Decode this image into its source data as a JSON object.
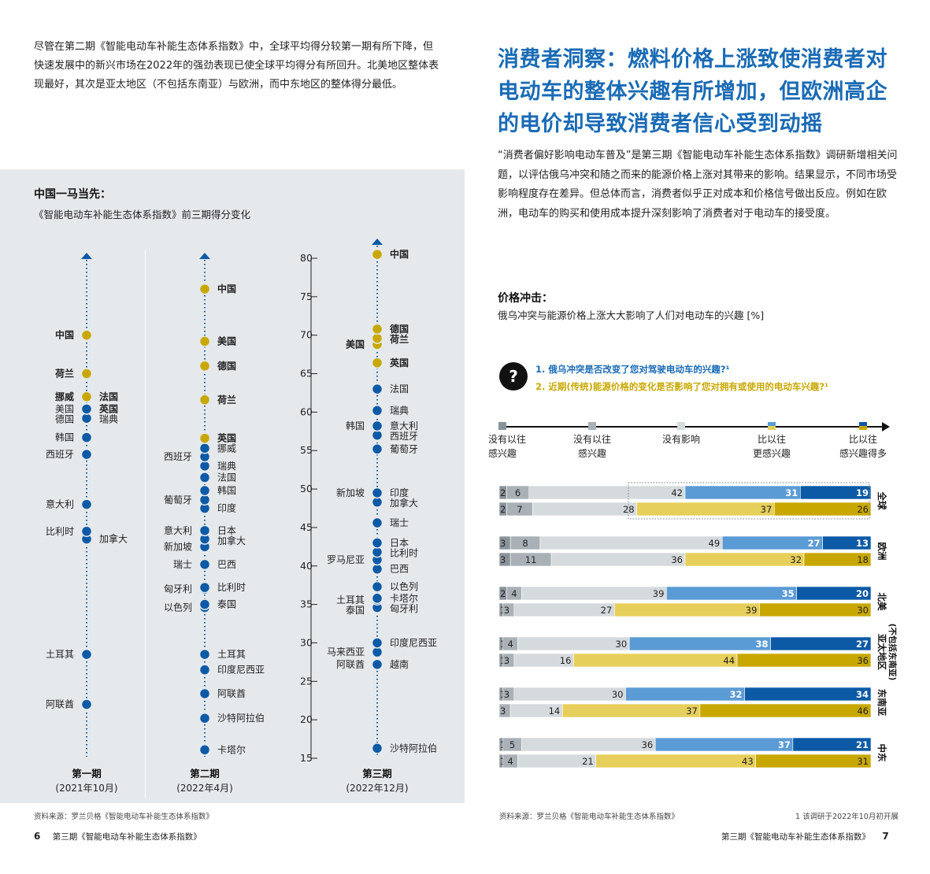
{
  "intro": "尽管在第二期《智能电动车补能生态体系指数》中，全球平均得分较第一期有所下降，但快速发展中的新兴市场在2022年的强劲表现已使全球平均得分有所回升。北美地区整体表现最好，其次是亚太地区（不包括东南亚）与欧洲，而中东地区的整体得分最低。",
  "left_chart": {
    "title": "中国一马当先：",
    "subtitle": "《智能电动车补能生态体系指数》前三期得分变化",
    "source": "资料来源：罗兰贝格《智能电动车补能生态体系指数》"
  },
  "right": {
    "headline": "消费者洞察：燃料价格上涨致使消费者对电动车的整体兴趣有所增加，但欧洲高企的电价却导致消费者信心受到动摇",
    "paragraph": "“消费者偏好影响电动车普及”是第三期《智能电动车补能生态体系指数》调研新增相关问题，以评估俄乌冲突和随之而来的能源价格上涨对其带来的影响。结果显示，不同市场受影响程度存在差异。但总体而言，消费者似乎正对成本和价格信号做出反应。例如在欧洲，电动车的购买和使用成本提升深刻影响了消费者对于电动车的接受度。",
    "chart_title": "价格冲击：",
    "chart_subtitle": "俄乌冲突与能源价格上涨大大影响了人们对电动车的兴趣 [%]",
    "question_mark": "?",
    "q1": "1. 俄乌冲突是否改变了您对驾驶电动车的兴趣?¹",
    "q2": "2. 近期(传统)能源价格的变化是否影响了您对拥有或使用的电动车兴趣?¹",
    "source": "资料来源：罗兰贝格《智能电动车补能生态体系指数》",
    "footnote": "1 该调研于2022年10月初开展"
  },
  "footer": {
    "left_page": "6",
    "left_text": "第三期《智能电动车补能生态体系指数》",
    "right_text": "第三期《智能电动车补能生态体系指数》",
    "right_page": "7"
  },
  "colors": {
    "blue": "#1a6bb5",
    "dark_blue": "#0c5aa6",
    "gold": "#c8a800",
    "light_gold": "#e6cf5a",
    "mid_blue": "#5b9bd5",
    "gray_dark": "#8a9399",
    "gray_mid": "#a9b1b6",
    "gray_light": "#d5dadd"
  },
  "chart_data": [
    {
      "type": "scatter",
      "title": "中国一马当先：",
      "subtitle": "《智能电动车补能生态体系指数》前三期得分变化",
      "ylim": [
        15,
        80
      ],
      "yticks": [
        80,
        75,
        70,
        65,
        60,
        55,
        50,
        45,
        40,
        35,
        30,
        25,
        20,
        15
      ],
      "periods": [
        {
          "name": "第一期",
          "date": "(2021年10月)",
          "points": [
            {
              "label": "中国",
              "value": 70,
              "highlight": true
            },
            {
              "label": "荷兰",
              "value": 65,
              "highlight": true
            },
            {
              "label": "挪威",
              "value": 62,
              "highlight": true
            },
            {
              "label": "法国",
              "value": 62,
              "highlight": true
            },
            {
              "label": "美国",
              "value": 60.4,
              "highlight": false
            },
            {
              "label": "英国",
              "value": 60.4,
              "highlight": true
            },
            {
              "label": "德国",
              "value": 59.2,
              "highlight": false
            },
            {
              "label": "瑞典",
              "value": 59.2,
              "highlight": false
            },
            {
              "label": "韩国",
              "value": 56.7,
              "highlight": false
            },
            {
              "label": "西班牙",
              "value": 54.5,
              "highlight": false
            },
            {
              "label": "意大利",
              "value": 48,
              "highlight": false
            },
            {
              "label": "加拿大",
              "value": 43.5,
              "highlight": false
            },
            {
              "label": "比利时",
              "value": 44.5,
              "highlight": false
            },
            {
              "label": "土耳其",
              "value": 28.5,
              "highlight": false
            },
            {
              "label": "阿联酋",
              "value": 22,
              "highlight": false
            }
          ]
        },
        {
          "name": "第二期",
          "date": "(2022年4月)",
          "points": [
            {
              "label": "中国",
              "value": 76,
              "highlight": true
            },
            {
              "label": "美国",
              "value": 69.2,
              "highlight": true
            },
            {
              "label": "德国",
              "value": 66,
              "highlight": true
            },
            {
              "label": "荷兰",
              "value": 61.6,
              "highlight": true
            },
            {
              "label": "英国",
              "value": 56.6,
              "highlight": true
            },
            {
              "label": "挪威",
              "value": 55.3,
              "highlight": false
            },
            {
              "label": "西班牙",
              "value": 54.2,
              "highlight": false
            },
            {
              "label": "瑞典",
              "value": 53,
              "highlight": false
            },
            {
              "label": "法国",
              "value": 51.5,
              "highlight": false
            },
            {
              "label": "韩国",
              "value": 49.8,
              "highlight": false
            },
            {
              "label": "葡萄牙",
              "value": 48.6,
              "highlight": false
            },
            {
              "label": "印度",
              "value": 47.5,
              "highlight": false
            },
            {
              "label": "日本",
              "value": 44.6,
              "highlight": false
            },
            {
              "label": "加拿大",
              "value": 43.5,
              "highlight": false
            },
            {
              "label": "意大利",
              "value": 44.6,
              "highlight": false
            },
            {
              "label": "新加坡",
              "value": 42.5,
              "highlight": false
            },
            {
              "label": "巴西",
              "value": 40.2,
              "highlight": false
            },
            {
              "label": "瑞士",
              "value": 40.2,
              "highlight": false
            },
            {
              "label": "比利时",
              "value": 37.2,
              "highlight": false
            },
            {
              "label": "匈牙利",
              "value": 37,
              "highlight": false
            },
            {
              "label": "泰国",
              "value": 35,
              "highlight": false
            },
            {
              "label": "以色列",
              "value": 34.6,
              "highlight": false
            },
            {
              "label": "土耳其",
              "value": 28.5,
              "highlight": false
            },
            {
              "label": "印度尼西亚",
              "value": 26.5,
              "highlight": false
            },
            {
              "label": "阿联酋",
              "value": 23.4,
              "highlight": false
            },
            {
              "label": "沙特阿拉伯",
              "value": 20.2,
              "highlight": false
            },
            {
              "label": "卡塔尔",
              "value": 16.1,
              "highlight": false
            }
          ]
        },
        {
          "name": "第三期",
          "date": "(2022年12月)",
          "points": [
            {
              "label": "中国",
              "value": 80.5,
              "highlight": true
            },
            {
              "label": "德国",
              "value": 70.8,
              "highlight": true
            },
            {
              "label": "荷兰",
              "value": 69.6,
              "highlight": true
            },
            {
              "label": "美国",
              "value": 68.8,
              "highlight": true
            },
            {
              "label": "英国",
              "value": 66.4,
              "highlight": true
            },
            {
              "label": "法国",
              "value": 63,
              "highlight": false
            },
            {
              "label": "瑞典",
              "value": 60.2,
              "highlight": false
            },
            {
              "label": "意大利",
              "value": 58.2,
              "highlight": false
            },
            {
              "label": "韩国",
              "value": 58.2,
              "highlight": false
            },
            {
              "label": "西班牙",
              "value": 57,
              "highlight": false
            },
            {
              "label": "葡萄牙",
              "value": 55.2,
              "highlight": false
            },
            {
              "label": "印度",
              "value": 49.5,
              "highlight": false
            },
            {
              "label": "新加坡",
              "value": 49.5,
              "highlight": false
            },
            {
              "label": "加拿大",
              "value": 48.3,
              "highlight": false
            },
            {
              "label": "瑞士",
              "value": 45.6,
              "highlight": false
            },
            {
              "label": "日本",
              "value": 43,
              "highlight": false
            },
            {
              "label": "比利时",
              "value": 41.8,
              "highlight": false
            },
            {
              "label": "罗马尼亚",
              "value": 40.8,
              "highlight": false
            },
            {
              "label": "巴西",
              "value": 39.6,
              "highlight": false
            },
            {
              "label": "以色列",
              "value": 37.3,
              "highlight": false
            },
            {
              "label": "卡塔尔",
              "value": 35.8,
              "highlight": false
            },
            {
              "label": "土耳其",
              "value": 35.6,
              "highlight": false
            },
            {
              "label": "匈牙利",
              "value": 34.6,
              "highlight": false
            },
            {
              "label": "泰国",
              "value": 34.6,
              "highlight": false
            },
            {
              "label": "印度尼西亚",
              "value": 30,
              "highlight": false
            },
            {
              "label": "马来西亚",
              "value": 28.8,
              "highlight": false
            },
            {
              "label": "越南",
              "value": 27.2,
              "highlight": false
            },
            {
              "label": "阿联酋",
              "value": 27.2,
              "highlight": false
            },
            {
              "label": "沙特阿拉伯",
              "value": 16.3,
              "highlight": false
            }
          ]
        }
      ]
    },
    {
      "type": "bar",
      "stacked": true,
      "orientation": "horizontal",
      "title": "价格冲击：",
      "subtitle": "俄乌冲突与能源价格上涨大大影响了人们对电动车的兴趣 [%]",
      "scale_labels": [
        "远没有以往感兴趣",
        "没有以往感兴趣",
        "没有影响",
        "比以往更感兴趣",
        "比以往感兴趣得多"
      ],
      "series": [
        {
          "name": "1. 俄乌冲突是否改变了您对驾驶电动车的兴趣?¹"
        },
        {
          "name": "2. 近期(传统)能源价格的变化是否影响了您对拥有或使用的电动车兴趣?¹"
        }
      ],
      "regions": [
        {
          "name": "全球",
          "q1": [
            2,
            6,
            42,
            31,
            19
          ],
          "q2": [
            2,
            7,
            28,
            37,
            26
          ]
        },
        {
          "name": "欧洲",
          "q1": [
            3,
            8,
            49,
            27,
            13
          ],
          "q2": [
            3,
            11,
            36,
            32,
            18
          ]
        },
        {
          "name": "北美",
          "q1": [
            2,
            4,
            39,
            35,
            20
          ],
          "q2": [
            1,
            3,
            27,
            39,
            30
          ]
        },
        {
          "name": "亚太地区",
          "name2": "(不包括东南亚)",
          "q1": [
            1,
            4,
            30,
            38,
            27
          ],
          "q2": [
            1,
            3,
            16,
            44,
            36
          ]
        },
        {
          "name": "东南亚",
          "q1": [
            1,
            3,
            30,
            32,
            34
          ],
          "q2": [
            0,
            3,
            14,
            37,
            46
          ]
        },
        {
          "name": "中东",
          "q1": [
            1,
            5,
            36,
            37,
            21
          ],
          "q2": [
            1,
            4,
            21,
            43,
            31
          ]
        }
      ]
    }
  ]
}
